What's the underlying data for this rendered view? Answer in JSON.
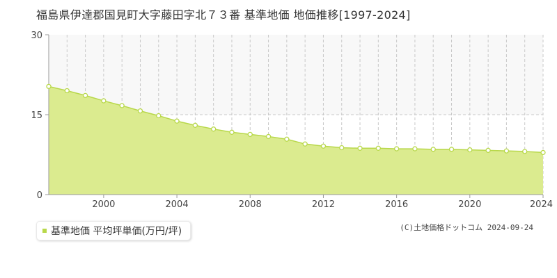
{
  "colors": {
    "area_fill": "#dbeb8f",
    "line": "#b8d84a",
    "marker_stroke": "#b8d84a",
    "marker_fill": "#ffffff",
    "band_fill": "#f8f8f8",
    "grid": "#c8c8c8",
    "axis": "#999999",
    "legend_swatch": "#b8d84a"
  },
  "legend": {
    "label": "基準地価 平均坪単価(万円/坪)"
  },
  "credit": "(C)土地価格ドットコム 2024-09-24",
  "chart_data": {
    "type": "area",
    "title": "福島県伊達郡国見町大字藤田字北７３番 基準地価 地価推移[1997-2024]",
    "xlabel": "",
    "ylabel": "",
    "xlim": [
      1997,
      2024
    ],
    "ylim": [
      0,
      30
    ],
    "yticks": [
      0,
      15,
      30
    ],
    "xticks": [
      2000,
      2004,
      2008,
      2012,
      2016,
      2020,
      2024
    ],
    "grid": true,
    "legend_position": "bottom-left",
    "series": [
      {
        "name": "基準地価 平均坪単価(万円/坪)",
        "x": [
          1997,
          1998,
          1999,
          2000,
          2001,
          2002,
          2003,
          2004,
          2005,
          2006,
          2007,
          2008,
          2009,
          2010,
          2011,
          2012,
          2013,
          2014,
          2015,
          2016,
          2017,
          2018,
          2019,
          2020,
          2021,
          2022,
          2023,
          2024
        ],
        "y": [
          20.3,
          19.5,
          18.6,
          17.6,
          16.7,
          15.7,
          14.8,
          13.8,
          13.0,
          12.3,
          11.7,
          11.3,
          10.9,
          10.4,
          9.5,
          9.1,
          8.8,
          8.7,
          8.7,
          8.6,
          8.6,
          8.5,
          8.5,
          8.4,
          8.3,
          8.2,
          8.1,
          7.9
        ]
      }
    ]
  }
}
